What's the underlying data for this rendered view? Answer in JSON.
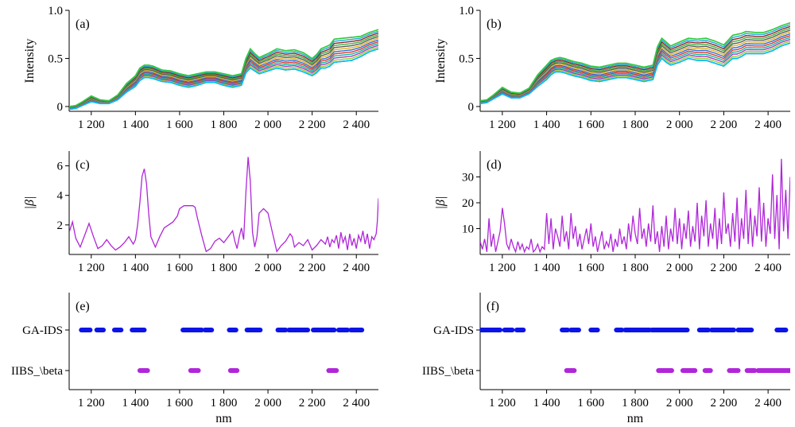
{
  "panels": [
    {
      "id": "a",
      "label": "(a)",
      "type": "line",
      "ylabel": "Intensity",
      "xlabel": "",
      "xlim": [
        1100,
        2500
      ],
      "ylim": [
        -0.05,
        1.0
      ],
      "xticks": [
        1200,
        1400,
        1600,
        1800,
        2000,
        2200,
        2400
      ],
      "xtick_labels": [
        "1 200",
        "1 400",
        "1 600",
        "1 800",
        "2 000",
        "2 200",
        "2 400"
      ],
      "yticks": [
        0,
        0.5,
        1.0
      ],
      "ytick_labels": [
        "0",
        "0.5",
        "1.0"
      ],
      "band": {
        "x": [
          1100,
          1130,
          1160,
          1200,
          1240,
          1280,
          1320,
          1360,
          1400,
          1420,
          1440,
          1460,
          1480,
          1520,
          1560,
          1600,
          1640,
          1680,
          1720,
          1760,
          1800,
          1840,
          1880,
          1900,
          1920,
          1940,
          1960,
          2000,
          2040,
          2080,
          2120,
          2160,
          2200,
          2220,
          2240,
          2260,
          2280,
          2300,
          2340,
          2380,
          2420,
          2460,
          2500
        ],
        "lower": [
          -0.03,
          -0.02,
          0.01,
          0.05,
          0.03,
          0.03,
          0.07,
          0.15,
          0.21,
          0.27,
          0.3,
          0.3,
          0.29,
          0.26,
          0.25,
          0.22,
          0.2,
          0.22,
          0.25,
          0.25,
          0.22,
          0.2,
          0.22,
          0.35,
          0.4,
          0.37,
          0.34,
          0.37,
          0.4,
          0.38,
          0.39,
          0.36,
          0.32,
          0.35,
          0.4,
          0.4,
          0.42,
          0.46,
          0.47,
          0.48,
          0.52,
          0.57,
          0.6
        ],
        "upper": [
          0.0,
          0.01,
          0.05,
          0.11,
          0.07,
          0.06,
          0.12,
          0.24,
          0.32,
          0.4,
          0.43,
          0.43,
          0.42,
          0.38,
          0.37,
          0.34,
          0.32,
          0.34,
          0.36,
          0.36,
          0.34,
          0.32,
          0.34,
          0.5,
          0.6,
          0.55,
          0.51,
          0.55,
          0.6,
          0.58,
          0.59,
          0.56,
          0.5,
          0.54,
          0.6,
          0.62,
          0.64,
          0.7,
          0.71,
          0.72,
          0.73,
          0.77,
          0.8
        ]
      }
    },
    {
      "id": "b",
      "label": "(b)",
      "type": "line",
      "ylabel": "Intensity",
      "xlabel": "",
      "xlim": [
        1100,
        2500
      ],
      "ylim": [
        -0.05,
        1.0
      ],
      "xticks": [
        1200,
        1400,
        1600,
        1800,
        2000,
        2200,
        2400
      ],
      "xtick_labels": [
        "1 200",
        "1 400",
        "1 600",
        "1 800",
        "2 000",
        "2 200",
        "2 400"
      ],
      "yticks": [
        0,
        0.5,
        1.0
      ],
      "ytick_labels": [
        "0",
        "0.5",
        "1.0"
      ],
      "band": {
        "x": [
          1100,
          1130,
          1160,
          1200,
          1240,
          1280,
          1320,
          1360,
          1400,
          1420,
          1440,
          1460,
          1480,
          1520,
          1560,
          1600,
          1640,
          1680,
          1720,
          1760,
          1800,
          1840,
          1880,
          1900,
          1920,
          1940,
          1960,
          2000,
          2040,
          2080,
          2120,
          2160,
          2200,
          2220,
          2240,
          2260,
          2280,
          2300,
          2340,
          2380,
          2420,
          2460,
          2500
        ],
        "lower": [
          0.03,
          0.04,
          0.08,
          0.13,
          0.09,
          0.09,
          0.13,
          0.21,
          0.28,
          0.33,
          0.36,
          0.36,
          0.35,
          0.32,
          0.3,
          0.27,
          0.26,
          0.28,
          0.3,
          0.3,
          0.28,
          0.26,
          0.28,
          0.43,
          0.5,
          0.46,
          0.43,
          0.46,
          0.5,
          0.48,
          0.48,
          0.45,
          0.42,
          0.46,
          0.5,
          0.5,
          0.52,
          0.55,
          0.55,
          0.55,
          0.58,
          0.63,
          0.66
        ],
        "upper": [
          0.06,
          0.07,
          0.12,
          0.2,
          0.15,
          0.14,
          0.19,
          0.33,
          0.43,
          0.48,
          0.5,
          0.51,
          0.5,
          0.47,
          0.45,
          0.42,
          0.41,
          0.43,
          0.45,
          0.45,
          0.43,
          0.41,
          0.43,
          0.62,
          0.71,
          0.67,
          0.63,
          0.67,
          0.71,
          0.7,
          0.71,
          0.68,
          0.64,
          0.69,
          0.74,
          0.75,
          0.76,
          0.78,
          0.77,
          0.77,
          0.8,
          0.84,
          0.87
        ]
      }
    },
    {
      "id": "c",
      "label": "(c)",
      "type": "line",
      "ylabel": "|β|",
      "xlabel": "",
      "xlim": [
        1100,
        2500
      ],
      "ylim": [
        0,
        7
      ],
      "xticks": [
        1200,
        1400,
        1600,
        1800,
        2000,
        2200,
        2400
      ],
      "xtick_labels": [
        "1 200",
        "1 400",
        "1 600",
        "1 800",
        "2 000",
        "2 200",
        "2 400"
      ],
      "yticks": [
        2,
        4,
        6
      ],
      "ytick_labels": [
        "2",
        "4",
        "6"
      ],
      "color": "#b026d9",
      "series": {
        "x": [
          1100,
          1115,
          1130,
          1150,
          1170,
          1190,
          1210,
          1230,
          1250,
          1270,
          1290,
          1310,
          1330,
          1350,
          1370,
          1390,
          1400,
          1410,
          1420,
          1430,
          1440,
          1450,
          1460,
          1470,
          1490,
          1510,
          1530,
          1550,
          1570,
          1590,
          1600,
          1620,
          1640,
          1660,
          1670,
          1680,
          1700,
          1720,
          1740,
          1760,
          1780,
          1800,
          1820,
          1840,
          1850,
          1860,
          1870,
          1880,
          1890,
          1900,
          1910,
          1920,
          1930,
          1940,
          1950,
          1960,
          1980,
          2000,
          2020,
          2040,
          2060,
          2080,
          2100,
          2110,
          2120,
          2140,
          2160,
          2180,
          2200,
          2220,
          2240,
          2260,
          2270,
          2280,
          2290,
          2300,
          2310,
          2320,
          2330,
          2340,
          2350,
          2360,
          2370,
          2380,
          2390,
          2400,
          2410,
          2420,
          2430,
          2440,
          2450,
          2460,
          2470,
          2480,
          2490,
          2495,
          2500
        ],
        "y": [
          1.5,
          2.2,
          1.1,
          0.5,
          1.3,
          2.1,
          1.2,
          0.4,
          0.6,
          1.0,
          0.6,
          0.3,
          0.5,
          0.8,
          1.2,
          0.7,
          1.0,
          2.0,
          3.5,
          5.3,
          5.8,
          4.8,
          2.8,
          1.2,
          0.5,
          1.2,
          1.8,
          2.0,
          2.2,
          2.6,
          3.1,
          3.3,
          3.3,
          3.3,
          3.2,
          2.5,
          1.3,
          0.2,
          0.4,
          0.9,
          1.1,
          0.8,
          1.2,
          1.6,
          0.9,
          0.4,
          1.2,
          1.8,
          1.0,
          4.2,
          6.6,
          5.0,
          1.5,
          0.5,
          1.2,
          2.8,
          3.1,
          2.8,
          1.5,
          0.2,
          0.6,
          0.9,
          1.4,
          1.2,
          0.5,
          0.8,
          0.6,
          1.0,
          0.3,
          0.6,
          1.0,
          0.7,
          1.2,
          0.5,
          1.0,
          0.8,
          1.3,
          0.4,
          1.5,
          0.8,
          1.2,
          0.3,
          1.4,
          0.6,
          1.1,
          0.4,
          1.3,
          0.9,
          1.6,
          0.7,
          1.4,
          0.4,
          1.2,
          1.0,
          1.4,
          2.2,
          3.8
        ]
      }
    },
    {
      "id": "d",
      "label": "(d)",
      "type": "line",
      "ylabel": "|β|",
      "xlabel": "",
      "xlim": [
        1100,
        2500
      ],
      "ylim": [
        0,
        40
      ],
      "xticks": [
        1200,
        1400,
        1600,
        1800,
        2000,
        2200,
        2400
      ],
      "xtick_labels": [
        "1 200",
        "1 400",
        "1 600",
        "1 800",
        "2 000",
        "2 200",
        "2 400"
      ],
      "yticks": [
        10,
        20,
        30
      ],
      "ytick_labels": [
        "10",
        "20",
        "30"
      ],
      "color": "#b026d9",
      "series": {
        "x": [
          1100,
          1110,
          1120,
          1130,
          1140,
          1150,
          1160,
          1170,
          1180,
          1190,
          1200,
          1210,
          1220,
          1230,
          1240,
          1250,
          1260,
          1270,
          1280,
          1290,
          1300,
          1310,
          1320,
          1330,
          1340,
          1350,
          1360,
          1370,
          1380,
          1390,
          1400,
          1410,
          1420,
          1430,
          1440,
          1450,
          1460,
          1470,
          1480,
          1490,
          1500,
          1510,
          1520,
          1530,
          1540,
          1550,
          1560,
          1570,
          1580,
          1590,
          1600,
          1610,
          1620,
          1630,
          1640,
          1650,
          1660,
          1670,
          1680,
          1690,
          1700,
          1710,
          1720,
          1730,
          1740,
          1750,
          1760,
          1770,
          1780,
          1790,
          1800,
          1810,
          1820,
          1830,
          1840,
          1850,
          1860,
          1870,
          1880,
          1890,
          1900,
          1910,
          1920,
          1930,
          1940,
          1950,
          1960,
          1970,
          1980,
          1990,
          2000,
          2010,
          2020,
          2030,
          2040,
          2050,
          2060,
          2070,
          2080,
          2090,
          2100,
          2110,
          2120,
          2130,
          2140,
          2150,
          2160,
          2170,
          2180,
          2190,
          2200,
          2210,
          2220,
          2230,
          2240,
          2250,
          2260,
          2270,
          2280,
          2290,
          2300,
          2310,
          2320,
          2330,
          2340,
          2350,
          2360,
          2370,
          2380,
          2390,
          2400,
          2410,
          2420,
          2430,
          2440,
          2450,
          2460,
          2470,
          2480,
          2490,
          2500
        ],
        "y": [
          5,
          2,
          6,
          1,
          14,
          3,
          8,
          1,
          5,
          9,
          18,
          12,
          4,
          2,
          6,
          3,
          1,
          5,
          2,
          4,
          1,
          3,
          2,
          6,
          1,
          2,
          4,
          1,
          3,
          2,
          16,
          4,
          14,
          2,
          10,
          7,
          3,
          15,
          5,
          9,
          2,
          16,
          6,
          11,
          3,
          8,
          2,
          6,
          10,
          4,
          12,
          3,
          7,
          1,
          5,
          9,
          2,
          5,
          3,
          8,
          1,
          6,
          3,
          10,
          4,
          7,
          2,
          12,
          5,
          15,
          8,
          4,
          18,
          6,
          10,
          3,
          12,
          5,
          19,
          4,
          9,
          1,
          11,
          3,
          15,
          2,
          10,
          5,
          18,
          4,
          14,
          2,
          12,
          6,
          17,
          3,
          11,
          5,
          20,
          2,
          15,
          7,
          21,
          3,
          12,
          6,
          18,
          2,
          14,
          4,
          24,
          8,
          12,
          3,
          16,
          5,
          22,
          2,
          14,
          6,
          25,
          4,
          18,
          3,
          15,
          7,
          26,
          5,
          20,
          3,
          14,
          8,
          31,
          6,
          23,
          2,
          37,
          9,
          25,
          6,
          30
        ]
      }
    },
    {
      "id": "e",
      "label": "(e)",
      "type": "scatter",
      "xlabel": "nm",
      "xlim": [
        1100,
        2500
      ],
      "xticks": [
        1200,
        1400,
        1600,
        1800,
        2000,
        2200,
        2400
      ],
      "xtick_labels": [
        "1 200",
        "1 400",
        "1 600",
        "1 800",
        "2 000",
        "2 200",
        "2 400"
      ],
      "categories": [
        "GA-IDS",
        "IIBS_\\beta"
      ],
      "series": [
        {
          "name": "GA-IDS",
          "color": "#0a14e6",
          "segments": [
            [
              1155,
              1195
            ],
            [
              1225,
              1255
            ],
            [
              1305,
              1335
            ],
            [
              1385,
              1440
            ],
            [
              1615,
              1700
            ],
            [
              1715,
              1745
            ],
            [
              1825,
              1855
            ],
            [
              1905,
              1965
            ],
            [
              2045,
              2080
            ],
            [
              2095,
              2180
            ],
            [
              2205,
              2300
            ],
            [
              2320,
              2360
            ],
            [
              2375,
              2425
            ]
          ]
        },
        {
          "name": "IIBS_\\beta",
          "color": "#b026d9",
          "segments": [
            [
              1420,
              1455
            ],
            [
              1650,
              1685
            ],
            [
              1830,
              1860
            ],
            [
              2275,
              2310
            ]
          ]
        }
      ]
    },
    {
      "id": "f",
      "label": "(f)",
      "type": "scatter",
      "xlabel": "nm",
      "xlim": [
        1100,
        2500
      ],
      "xticks": [
        1200,
        1400,
        1600,
        1800,
        2000,
        2200,
        2400
      ],
      "xtick_labels": [
        "1 200",
        "1 400",
        "1 600",
        "1 800",
        "2 000",
        "2 200",
        "2 400"
      ],
      "categories": [
        "GA-IDS",
        "IIBS_\\beta"
      ],
      "series": [
        {
          "name": "GA-IDS",
          "color": "#0a14e6",
          "segments": [
            [
              1100,
              1190
            ],
            [
              1210,
              1245
            ],
            [
              1265,
              1295
            ],
            [
              1470,
              1495
            ],
            [
              1510,
              1545
            ],
            [
              1600,
              1630
            ],
            [
              1715,
              1740
            ],
            [
              1755,
              1865
            ],
            [
              1875,
              2035
            ],
            [
              2090,
              2130
            ],
            [
              2145,
              2245
            ],
            [
              2265,
              2325
            ],
            [
              2440,
              2480
            ]
          ]
        },
        {
          "name": "IIBS_\\beta",
          "color": "#b026d9",
          "segments": [
            [
              1490,
              1525
            ],
            [
              1905,
              1965
            ],
            [
              2015,
              2070
            ],
            [
              2115,
              2140
            ],
            [
              2225,
              2265
            ],
            [
              2305,
              2340
            ],
            [
              2355,
              2500
            ]
          ]
        }
      ]
    }
  ]
}
